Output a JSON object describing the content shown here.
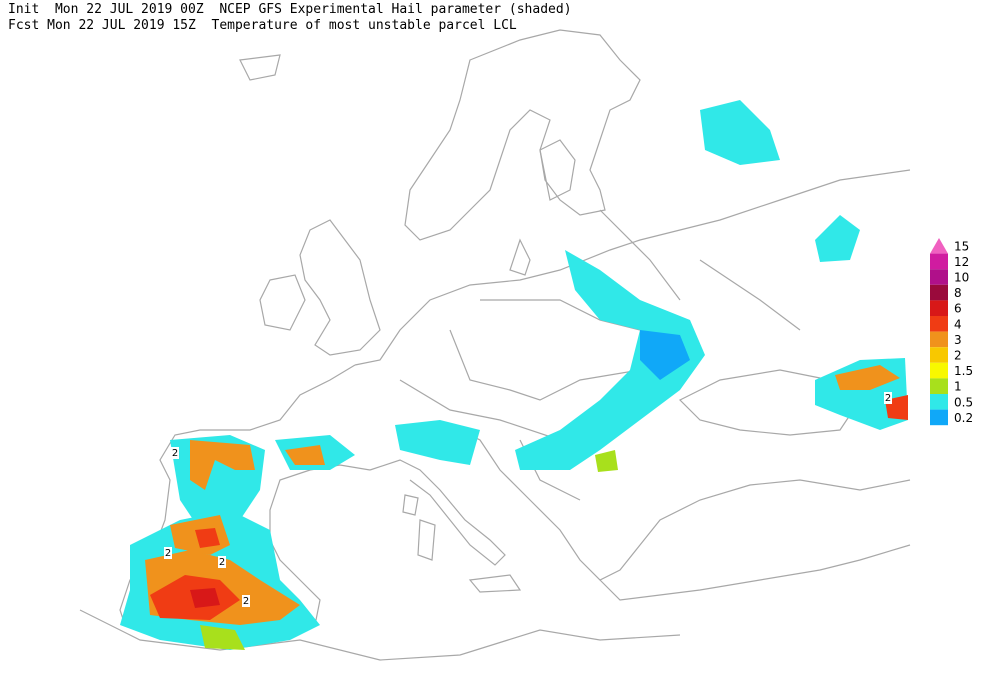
{
  "header": {
    "line1": "Init  Mon 22 JUL 2019 00Z  NCEP GFS Experimental Hail parameter (shaded)",
    "line2": "Fcst Mon 22 JUL 2019 15Z  Temperature of most unstable parcel LCL"
  },
  "legend": {
    "levels": [
      {
        "label": "15",
        "color": "#f060c0"
      },
      {
        "label": "12",
        "color": "#d01ca0"
      },
      {
        "label": "10",
        "color": "#b0108a"
      },
      {
        "label": "8",
        "color": "#9a0a3c"
      },
      {
        "label": "6",
        "color": "#d81818"
      },
      {
        "label": "4",
        "color": "#f03c14"
      },
      {
        "label": "3",
        "color": "#f0921c"
      },
      {
        "label": "2",
        "color": "#f8c800"
      },
      {
        "label": "1.5",
        "color": "#f8f800"
      },
      {
        "label": "1",
        "color": "#a8e01c"
      },
      {
        "label": "0.5",
        "color": "#30e8e8"
      },
      {
        "label": "0.2",
        "color": "#10a8f8"
      }
    ]
  },
  "contour_labels": [
    "2",
    "2",
    "2",
    "2",
    "2"
  ]
}
